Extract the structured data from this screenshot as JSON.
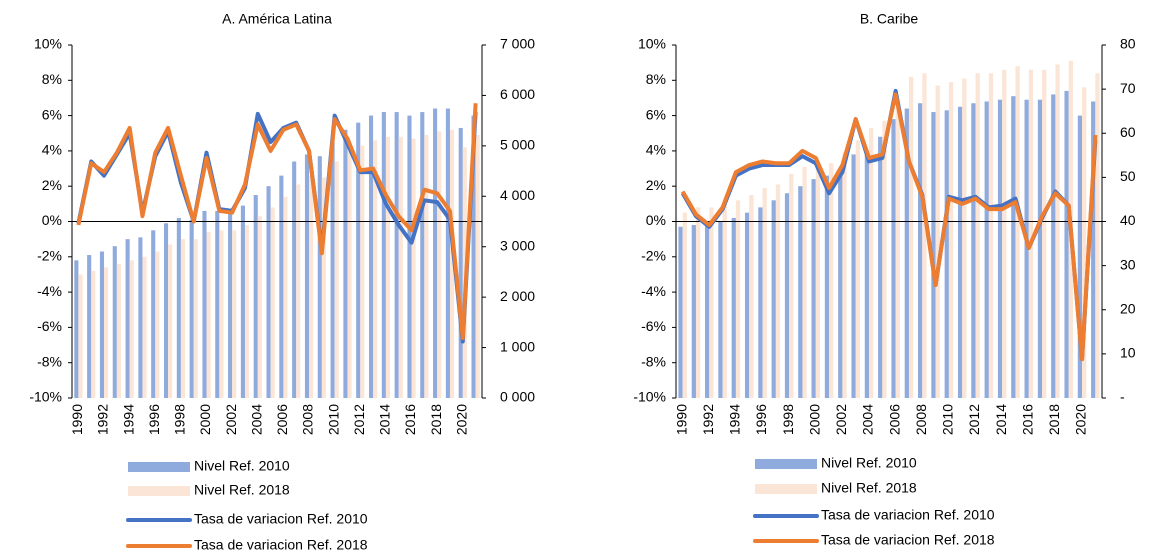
{
  "chart_data": [
    {
      "type": "bar_line",
      "title": "A. América Latina",
      "categories": [
        "1990",
        null,
        "1992",
        null,
        "1994",
        null,
        "1996",
        null,
        "1998",
        null,
        "2000",
        null,
        "2002",
        null,
        "2004",
        null,
        "2006",
        null,
        "2008",
        null,
        "2010",
        null,
        "2012",
        null,
        "2014",
        null,
        "2016",
        null,
        "2018",
        null,
        "2020",
        null
      ],
      "ylim": [
        -10,
        10
      ],
      "yticks": [
        {
          "value": -10,
          "label": "-10%"
        },
        {
          "value": -8,
          "label": "-8%"
        },
        {
          "value": -6,
          "label": "-6%"
        },
        {
          "value": -4,
          "label": "-4%"
        },
        {
          "value": -2,
          "label": "-2%"
        },
        {
          "value": 0,
          "label": "0%"
        },
        {
          "value": 2,
          "label": "2%"
        },
        {
          "value": 4,
          "label": "4%"
        },
        {
          "value": 6,
          "label": "6%"
        },
        {
          "value": 8,
          "label": "8%"
        },
        {
          "value": 10,
          "label": "10%"
        }
      ],
      "y2lim": [
        0,
        7000
      ],
      "y2ticks": [
        {
          "value": 0,
          "label": "0 000"
        },
        {
          "value": 1000,
          "label": "1 000"
        },
        {
          "value": 2000,
          "label": "2 000"
        },
        {
          "value": 3000,
          "label": "3 000"
        },
        {
          "value": 4000,
          "label": "4 000"
        },
        {
          "value": 5000,
          "label": "5 000"
        },
        {
          "value": 6000,
          "label": "6 000"
        },
        {
          "value": 7000,
          "label": "7 000"
        }
      ],
      "legend": "bottom",
      "series": [
        {
          "name": "Nivel Ref. 2010",
          "type": "bar",
          "axis": "y2",
          "color": "#8faadc",
          "values": [
            2730,
            2835,
            2905,
            3010,
            3150,
            3185,
            3325,
            3465,
            3570,
            3535,
            3710,
            3710,
            3710,
            3815,
            4025,
            4200,
            4410,
            4690,
            4830,
            4795,
            5075,
            5320,
            5460,
            5600,
            5670,
            5670,
            5600,
            5670,
            5740,
            5740,
            5355,
            5600
          ]
        },
        {
          "name": "Nivel Ref. 2018",
          "type": "bar",
          "axis": "y2",
          "color": "#fbe5d6",
          "values": [
            2450,
            2520,
            2590,
            2660,
            2730,
            2800,
            2905,
            3045,
            3150,
            3150,
            3290,
            3325,
            3325,
            3430,
            3605,
            3780,
            3990,
            4235,
            4410,
            4375,
            4690,
            4900,
            5005,
            5110,
            5180,
            5180,
            5145,
            5215,
            5285,
            5320,
            4970,
            5215
          ]
        },
        {
          "name": "Tasa de variacion Ref. 2010",
          "type": "line",
          "color": "#4472c4",
          "values": [
            -0.1,
            3.4,
            2.6,
            3.8,
            5.0,
            0.5,
            3.7,
            5.1,
            2.2,
            0.0,
            3.9,
            0.7,
            0.6,
            1.9,
            6.1,
            4.5,
            5.3,
            5.6,
            4.0,
            -1.6,
            6.0,
            4.4,
            2.8,
            2.8,
            1.0,
            -0.2,
            -1.2,
            1.2,
            1.1,
            0.1,
            -6.8,
            6.2
          ]
        },
        {
          "name": "Tasa de variacion Ref. 2018",
          "type": "line",
          "color": "#ed7d31",
          "values": [
            -0.2,
            3.3,
            2.8,
            3.9,
            5.3,
            0.3,
            3.9,
            5.3,
            2.6,
            0.0,
            3.6,
            0.6,
            0.5,
            2.1,
            5.5,
            4.0,
            5.2,
            5.5,
            4.0,
            -1.8,
            5.8,
            4.7,
            2.9,
            3.0,
            1.5,
            0.3,
            -0.5,
            1.8,
            1.6,
            0.6,
            -6.6,
            6.7
          ]
        }
      ]
    },
    {
      "type": "bar_line",
      "title": "B. Caribe",
      "categories": [
        "1990",
        null,
        "1992",
        null,
        "1994",
        null,
        "1996",
        null,
        "1998",
        null,
        "2000",
        null,
        "2002",
        null,
        "2004",
        null,
        "2006",
        null,
        "2008",
        null,
        "2010",
        null,
        "2012",
        null,
        "2014",
        null,
        "2016",
        null,
        "2018",
        null,
        "2020",
        null
      ],
      "ylim": [
        -10,
        10
      ],
      "yticks": [
        {
          "value": -10,
          "label": "-10%"
        },
        {
          "value": -8,
          "label": "-8%"
        },
        {
          "value": -6,
          "label": "-6%"
        },
        {
          "value": -4,
          "label": "-4%"
        },
        {
          "value": -2,
          "label": "-2%"
        },
        {
          "value": 0,
          "label": "0%"
        },
        {
          "value": 2,
          "label": "2%"
        },
        {
          "value": 4,
          "label": "4%"
        },
        {
          "value": 6,
          "label": "6%"
        },
        {
          "value": 8,
          "label": "8%"
        },
        {
          "value": 10,
          "label": "10%"
        }
      ],
      "y2lim": [
        0,
        80
      ],
      "y2ticks": [
        {
          "value": 0,
          "label": "-"
        },
        10,
        20,
        30,
        40,
        50,
        60,
        70,
        80
      ],
      "legend": "bottom",
      "series": [
        {
          "name": "Nivel Ref. 2010",
          "type": "bar",
          "axis": "y2",
          "color": "#8faadc",
          "values": [
            38.8,
            39.2,
            39.6,
            40,
            40.8,
            42,
            43.2,
            44.8,
            46.4,
            48,
            49.6,
            50.4,
            52,
            55.2,
            56,
            59.2,
            63.2,
            65.6,
            66.8,
            64.8,
            65.2,
            66,
            66.8,
            67.2,
            67.6,
            68.4,
            67.6,
            67.6,
            68.8,
            69.6,
            64,
            67.2
          ]
        },
        {
          "name": "Nivel Ref. 2018",
          "type": "bar",
          "axis": "y2",
          "color": "#fbe5d6",
          "values": [
            42,
            43.2,
            43.2,
            44,
            44.8,
            46,
            47.6,
            48.4,
            50.8,
            52.4,
            53.2,
            53.2,
            55.6,
            58.4,
            61.2,
            62.8,
            66,
            72.8,
            73.6,
            70.8,
            71.6,
            72.4,
            73.6,
            73.6,
            74.4,
            75.2,
            74.4,
            74.4,
            75.6,
            76.4,
            70.4,
            73.6
          ]
        },
        {
          "name": "Tasa de variacion Ref. 2010",
          "type": "line",
          "color": "#4472c4",
          "values": [
            1.6,
            0.3,
            -0.3,
            0.7,
            2.6,
            3.0,
            3.2,
            3.2,
            3.2,
            3.7,
            3.3,
            1.6,
            2.8,
            5.8,
            3.4,
            3.6,
            7.4,
            3.4,
            1.5,
            -3.6,
            1.4,
            1.2,
            1.4,
            0.8,
            0.9,
            1.3,
            -1.5,
            0.2,
            1.7,
            0.9,
            -7.8,
            4.6
          ]
        },
        {
          "name": "Tasa de variacion Ref. 2018",
          "type": "line",
          "color": "#ed7d31",
          "values": [
            1.7,
            0.4,
            -0.2,
            0.8,
            2.8,
            3.2,
            3.4,
            3.3,
            3.3,
            4.0,
            3.6,
            1.9,
            3.2,
            5.8,
            3.6,
            3.8,
            7.2,
            3.4,
            1.4,
            -3.6,
            1.3,
            1.0,
            1.3,
            0.7,
            0.7,
            1.1,
            -1.5,
            0.3,
            1.6,
            0.9,
            -7.8,
            4.9
          ]
        }
      ]
    }
  ]
}
